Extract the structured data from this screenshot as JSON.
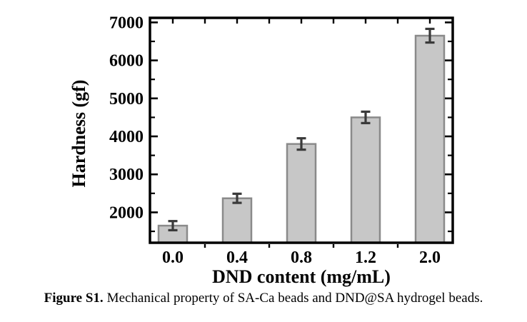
{
  "chart_data": {
    "type": "bar",
    "title": "",
    "xlabel": "DND content (mg/mL)",
    "ylabel": "Hardness (gf)",
    "categories": [
      "0.0",
      "0.4",
      "0.8",
      "1.2",
      "2.0"
    ],
    "values": [
      1650,
      2370,
      3800,
      4500,
      6650
    ],
    "errors": [
      120,
      120,
      150,
      150,
      180
    ],
    "ylim": [
      1200,
      7120
    ],
    "y_major_ticks": [
      2000,
      3000,
      4000,
      5000,
      6000,
      7000
    ],
    "y_minor_ticks": [
      1500,
      2500,
      3500,
      4500,
      5500,
      6500
    ],
    "grid": false,
    "legend": "none",
    "colors": {
      "bar_fill": "#c7c7c7",
      "bar_stroke": "#8a8a8a",
      "error_bar": "#3a3a3a",
      "axis": "#000000",
      "text": "#000000",
      "background": "#ffffff"
    }
  },
  "caption": {
    "label": "Figure S1.",
    "text": "Mechanical property of SA-Ca beads and DND@SA hydrogel beads."
  }
}
